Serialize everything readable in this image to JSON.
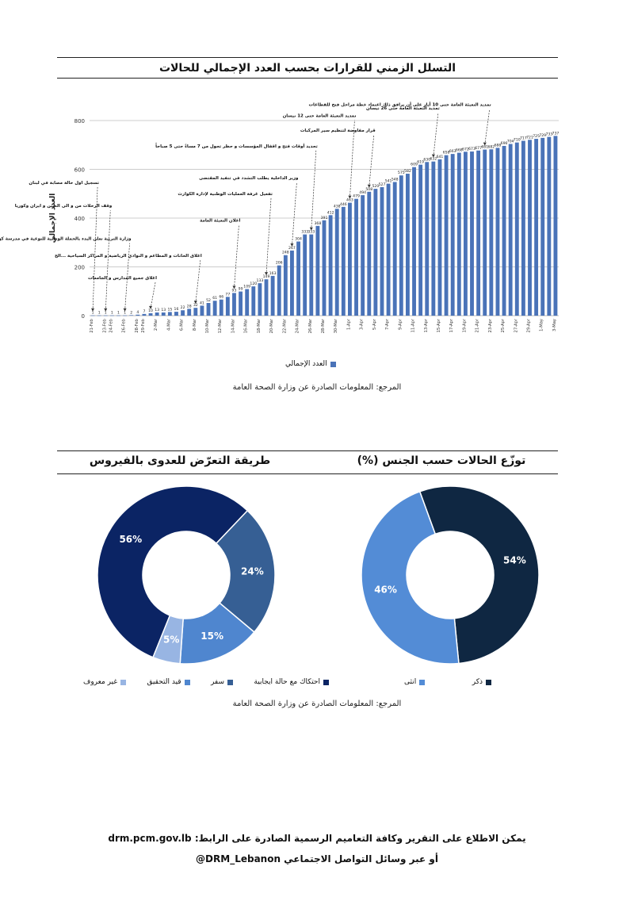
{
  "timeline": {
    "title": "التسلل الزمني للقرارات بحسب العدد الإجمالي للحالات",
    "source": "المرجع: المعلومات الصادرة عن وزارة الصحة العامة"
  },
  "exposure": {
    "title": "طريقة التعرّض للعدوى بالفيروس",
    "colors": [
      "#0b2464",
      "#365f94",
      "#4f86cf",
      "#98b5e3"
    ]
  },
  "gender": {
    "title": "توزّع الحالات حسب الجنس (%)",
    "colors": [
      "#0f2742",
      "#538cd6"
    ]
  },
  "pies_source": "المرجع: المعلومات الصادرة عن وزارة الصحة العامة",
  "footer": {
    "line1": "يمكن الاطلاع على التقرير وكافة التعاميم الرسمية الصادرة على الرابط: drm.pcm.gov.lb",
    "line2": "أو عبر وسائل التواصل الاجتماعي DRM_Lebanon@"
  },
  "chart_data": [
    {
      "type": "bar",
      "ylabel": "العدد الإجمالي",
      "ylim": [
        0,
        800
      ],
      "yticks": [
        0,
        200,
        400,
        600,
        800
      ],
      "grid": true,
      "bar_color": "#4a73b8",
      "categories": [
        "21-Feb",
        "22-Feb",
        "23-Feb",
        "24-Feb",
        "25-Feb",
        "26-Feb",
        "27-Feb",
        "28-Feb",
        "29-Feb",
        "1-Mar",
        "2-Mar",
        "3-Mar",
        "4-Mar",
        "5-Mar",
        "6-Mar",
        "7-Mar",
        "8-Mar",
        "9-Mar",
        "10-Mar",
        "11-Mar",
        "12-Mar",
        "13-Mar",
        "14-Mar",
        "15-Mar",
        "16-Mar",
        "17-Mar",
        "18-Mar",
        "19-Mar",
        "20-Mar",
        "21-Mar",
        "22-Mar",
        "23-Mar",
        "24-Mar",
        "25-Mar",
        "26-Mar",
        "27-Mar",
        "28-Mar",
        "29-Mar",
        "30-Mar",
        "31-Mar",
        "1-Apr",
        "2-Apr",
        "3-Apr",
        "4-Apr",
        "5-Apr",
        "6-Apr",
        "7-Apr",
        "8-Apr",
        "9-Apr",
        "10-Apr",
        "11-Apr",
        "12-Apr",
        "13-Apr",
        "14-Apr",
        "15-Apr",
        "16-Apr",
        "17-Apr",
        "18-Apr",
        "19-Apr",
        "20-Apr",
        "21-Apr",
        "22-Apr",
        "23-Apr",
        "24-Apr",
        "25-Apr",
        "26-Apr",
        "27-Apr",
        "28-Apr",
        "29-Apr",
        "30-Apr",
        "1-May",
        "2-May",
        "3-May"
      ],
      "xtick_labels": [
        "21-Feb",
        "",
        "23-Feb",
        "24-Feb",
        "",
        "26-Feb",
        "",
        "28-Feb",
        "29-Feb",
        "",
        "2-Mar",
        "",
        "4-Mar",
        "",
        "6-Mar",
        "",
        "8-Mar",
        "",
        "10-Mar",
        "",
        "12-Mar",
        "",
        "14-Mar",
        "",
        "16-Mar",
        "",
        "18-Mar",
        "",
        "20-Mar",
        "",
        "22-Mar",
        "",
        "24-Mar",
        "",
        "26-Mar",
        "",
        "28-Mar",
        "",
        "30-Mar",
        "",
        "1-Apr",
        "",
        "3-Apr",
        "",
        "5-Apr",
        "",
        "7-Apr",
        "",
        "9-Apr",
        "",
        "11-Apr",
        "",
        "13-Apr",
        "",
        "15-Apr",
        "",
        "17-Apr",
        "",
        "19-Apr",
        "",
        "21-Apr",
        "",
        "23-Apr",
        "",
        "25-Apr",
        "",
        "27-Apr",
        "",
        "29-Apr",
        "",
        "1-May",
        "",
        "3-May"
      ],
      "values": [
        1,
        1,
        1,
        1,
        1,
        1,
        2,
        4,
        7,
        10,
        13,
        13,
        15,
        16,
        22,
        28,
        32,
        41,
        52,
        61,
        66,
        77,
        93,
        99,
        109,
        120,
        133,
        149,
        163,
        206,
        248,
        267,
        304,
        333,
        333,
        368,
        391,
        412,
        438,
        446,
        463,
        479,
        494,
        508,
        520,
        527,
        541,
        548,
        575,
        582,
        609,
        619,
        630,
        632,
        641,
        658,
        663,
        668,
        672,
        673,
        677,
        681,
        682,
        688,
        696,
        704,
        710,
        717,
        721,
        725,
        729,
        733,
        737
      ],
      "labels_every": 1,
      "legend": [
        "العدد الإجمالي"
      ],
      "annotations": [
        {
          "text": "تسجيل اول حالة مصابة في لبنان",
          "idx": 0,
          "ly": 540
        },
        {
          "text": "وقف الرحلات من و الى الصين و ايران وكوريا",
          "idx": 2,
          "ly": 445
        },
        {
          "text": "وزارة التربية تعلن البدء بالحملة الوطنية للتوعية في مدرسة كورونا 19",
          "idx": 5,
          "ly": 310
        },
        {
          "text": "اغلاق جميع المدارس و الجامعات",
          "idx": 9,
          "ly": 150
        },
        {
          "text": "اغلاق الحانات و المطاعم و النوادي الرياضية و المراكز السياحية ...الخ",
          "idx": 16,
          "ly": 240
        },
        {
          "text": "اعلان التعبئة العامة",
          "idx": 22,
          "ly": 385
        },
        {
          "text": "تفعيل غرفة العمليات الوطنية لإدارة الكوارث",
          "idx": 27,
          "ly": 495
        },
        {
          "text": "وزير الداخلية يطلب التشدد في تنفيذ المقتضى",
          "idx": 31,
          "ly": 560
        },
        {
          "text": "تحديد أوقات فتح و اقفال المؤسسات و حظر تجول من 7 مساءً حتى 5 صباحاً",
          "idx": 34,
          "ly": 690
        },
        {
          "text": "تمديد التعبئة العامة حتى 12 نيسان",
          "idx": 40,
          "ly": 815
        },
        {
          "text": "تمديد التعبئة العامة حتى 26 نيسان",
          "idx": 53,
          "ly": 845
        },
        {
          "text": "قرار مفاوضة لتنظيم سير المركبات",
          "idx": 43,
          "ly": 755
        },
        {
          "text": "تمديد التعبئة العامة حتى 10 أيار على أن يرافق ذلك اعتماد خطة مراحل فتح للقطاعات",
          "idx": 61,
          "ly": 860
        }
      ]
    },
    {
      "type": "pie",
      "donut": true,
      "title": "طريقة التعرّض للعدوى بالفيروس",
      "labels": [
        "احتكاك مع حالة ايجابية",
        "سفر",
        "قيد التحقيق",
        "غير معروف"
      ],
      "values": [
        56,
        24,
        15,
        5
      ],
      "value_labels": [
        "56%",
        "24%",
        "15%",
        "5%"
      ],
      "legend_position": "bottom"
    },
    {
      "type": "pie",
      "donut": true,
      "title": "توزّع الحالات حسب الجنس (%)",
      "labels": [
        "ذكر",
        "انثى"
      ],
      "values": [
        54,
        46
      ],
      "value_labels": [
        "54%",
        "46%"
      ],
      "legend_position": "bottom"
    }
  ]
}
